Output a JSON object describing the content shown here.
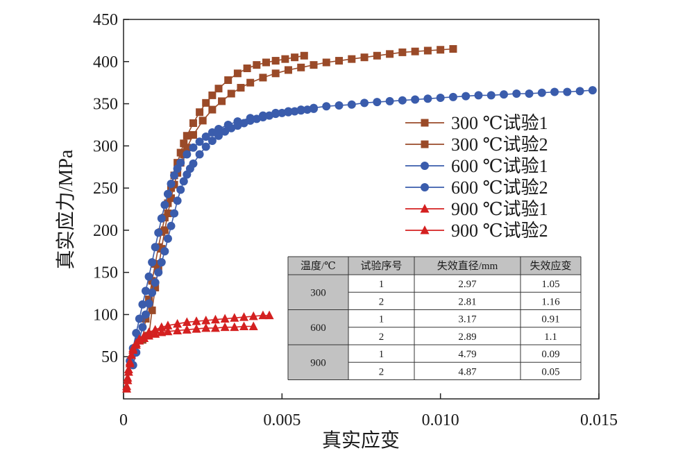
{
  "chart_data": {
    "type": "line",
    "title": "",
    "xlabel": "真实应变",
    "ylabel": "真实应力/MPa",
    "xlim": [
      0,
      0.015
    ],
    "ylim": [
      0,
      450
    ],
    "x_ticks": [
      0,
      0.005,
      0.01,
      0.015
    ],
    "x_tick_labels": [
      "0",
      "0.005",
      "0.010",
      "0.015"
    ],
    "y_ticks": [
      50,
      100,
      150,
      200,
      250,
      300,
      350,
      400,
      450
    ],
    "y_tick_labels": [
      "50",
      "100",
      "150",
      "200",
      "250",
      "300",
      "350",
      "400",
      "450"
    ],
    "grid": false,
    "legend_position": "right",
    "series": [
      {
        "name": "300 ℃试验1",
        "color": "#9a4a28",
        "marker": "square",
        "x": [
          0.0006,
          0.0007,
          0.0008,
          0.0009,
          0.001,
          0.0011,
          0.0012,
          0.0013,
          0.0014,
          0.0015,
          0.0016,
          0.0017,
          0.0018,
          0.0019,
          0.002,
          0.0022,
          0.0024,
          0.0026,
          0.0028,
          0.003,
          0.0033,
          0.0036,
          0.0039,
          0.0042,
          0.0045,
          0.0048,
          0.0051,
          0.0054,
          0.0057
        ],
        "y": [
          70,
          95,
          118,
          140,
          160,
          180,
          198,
          215,
          232,
          250,
          265,
          280,
          292,
          303,
          312,
          327,
          340,
          351,
          360,
          368,
          378,
          386,
          392,
          396,
          399,
          401,
          403,
          405,
          407
        ]
      },
      {
        "name": "300 ℃试验2",
        "color": "#9a4a28",
        "marker": "square",
        "x": [
          0.0008,
          0.0009,
          0.001,
          0.0011,
          0.0012,
          0.0013,
          0.0014,
          0.0015,
          0.0016,
          0.0017,
          0.0018,
          0.0019,
          0.002,
          0.0022,
          0.0025,
          0.0028,
          0.0031,
          0.0034,
          0.0037,
          0.004,
          0.0044,
          0.0048,
          0.0052,
          0.0056,
          0.006,
          0.0064,
          0.0068,
          0.0072,
          0.0076,
          0.008,
          0.0084,
          0.0088,
          0.0092,
          0.0096,
          0.01,
          0.0104
        ],
        "y": [
          75,
          105,
          132,
          155,
          178,
          200,
          220,
          238,
          254,
          268,
          280,
          290,
          298,
          313,
          330,
          343,
          353,
          362,
          369,
          375,
          381,
          386,
          390,
          393,
          396,
          399,
          401,
          403,
          405,
          407,
          409,
          411,
          412,
          413,
          414,
          415
        ]
      },
      {
        "name": "600 ℃试验1",
        "color": "#3a5cac",
        "marker": "circle",
        "x": [
          0.0002,
          0.0003,
          0.0004,
          0.0005,
          0.0006,
          0.0007,
          0.0008,
          0.0009,
          0.001,
          0.0011,
          0.0012,
          0.0013,
          0.0014,
          0.0015,
          0.0016,
          0.0017,
          0.0018,
          0.002,
          0.0022,
          0.0024,
          0.0026,
          0.0028,
          0.003,
          0.0033,
          0.0036,
          0.004,
          0.0044,
          0.0048,
          0.0052,
          0.0056,
          0.006,
          0.0064,
          0.0068,
          0.0072,
          0.0076,
          0.008,
          0.0084,
          0.0088,
          0.0092,
          0.0096,
          0.01,
          0.0104,
          0.0108,
          0.0112,
          0.0116,
          0.012,
          0.0124,
          0.0128,
          0.0132,
          0.0136,
          0.014,
          0.0144,
          0.0148
        ],
        "y": [
          45,
          60,
          78,
          95,
          112,
          128,
          145,
          162,
          180,
          197,
          214,
          230,
          243,
          255,
          265,
          273,
          280,
          290,
          298,
          305,
          311,
          316,
          320,
          325,
          329,
          333,
          336,
          339,
          341,
          343,
          345,
          347,
          348,
          349,
          351,
          352,
          353,
          354,
          355,
          356,
          357,
          358,
          359,
          360,
          360,
          361,
          362,
          362,
          363,
          364,
          364,
          365,
          366
        ]
      },
      {
        "name": "600 ℃试验2",
        "color": "#3a5cac",
        "marker": "circle",
        "x": [
          0.0003,
          0.0004,
          0.0005,
          0.0006,
          0.0007,
          0.0008,
          0.0009,
          0.001,
          0.0011,
          0.0012,
          0.0013,
          0.0014,
          0.0015,
          0.0016,
          0.0017,
          0.0018,
          0.0019,
          0.002,
          0.0021,
          0.0022,
          0.0024,
          0.0026,
          0.0028,
          0.003,
          0.0032,
          0.0034,
          0.0036,
          0.0038,
          0.004,
          0.0042,
          0.0044,
          0.0046,
          0.0048,
          0.005,
          0.0052,
          0.0054,
          0.0056,
          0.0058,
          0.006
        ],
        "y": [
          40,
          55,
          70,
          85,
          100,
          113,
          126,
          138,
          150,
          162,
          175,
          190,
          205,
          220,
          235,
          248,
          258,
          266,
          273,
          279,
          290,
          299,
          306,
          312,
          317,
          321,
          324,
          327,
          330,
          332,
          334,
          336,
          338,
          339,
          340,
          341,
          342,
          343,
          344
        ]
      },
      {
        "name": "900 ℃试验1",
        "color": "#d42020",
        "marker": "triangle",
        "x": [
          0.0001,
          0.00013,
          0.00016,
          0.0002,
          0.00025,
          0.0003,
          0.0004,
          0.0005,
          0.00065,
          0.0008,
          0.001,
          0.0012,
          0.0014,
          0.0017,
          0.002,
          0.0023,
          0.0026,
          0.0029,
          0.0032,
          0.0035,
          0.0038,
          0.0041
        ],
        "y": [
          15,
          25,
          35,
          44,
          52,
          58,
          64,
          69,
          72,
          75,
          77,
          79,
          80,
          81,
          82,
          83,
          84,
          84,
          85,
          85,
          86,
          86
        ]
      },
      {
        "name": "900 ℃试验2",
        "color": "#d42020",
        "marker": "triangle",
        "x": [
          0.0001,
          0.00013,
          0.00016,
          0.0002,
          0.00025,
          0.0003,
          0.0004,
          0.0005,
          0.00065,
          0.0008,
          0.001,
          0.0012,
          0.0014,
          0.0017,
          0.002,
          0.0023,
          0.0026,
          0.0029,
          0.0032,
          0.0035,
          0.0038,
          0.0041,
          0.0044,
          0.0046
        ],
        "y": [
          12,
          22,
          32,
          42,
          52,
          60,
          66,
          71,
          75,
          79,
          82,
          85,
          87,
          89,
          91,
          92,
          93,
          94,
          95,
          96,
          97,
          98,
          99,
          99
        ]
      }
    ]
  },
  "table": {
    "headers": [
      "温度/℃",
      "试验序号",
      "失效直径/mm",
      "失效应变"
    ],
    "groups": [
      {
        "temp": "300",
        "rows": [
          [
            "1",
            "2.97",
            "1.05"
          ],
          [
            "2",
            "2.81",
            "1.16"
          ]
        ]
      },
      {
        "temp": "600",
        "rows": [
          [
            "1",
            "3.17",
            "0.91"
          ],
          [
            "2",
            "2.89",
            "1.1"
          ]
        ]
      },
      {
        "temp": "900",
        "rows": [
          [
            "1",
            "4.79",
            "0.09"
          ],
          [
            "2",
            "4.87",
            "0.05"
          ]
        ]
      }
    ]
  }
}
